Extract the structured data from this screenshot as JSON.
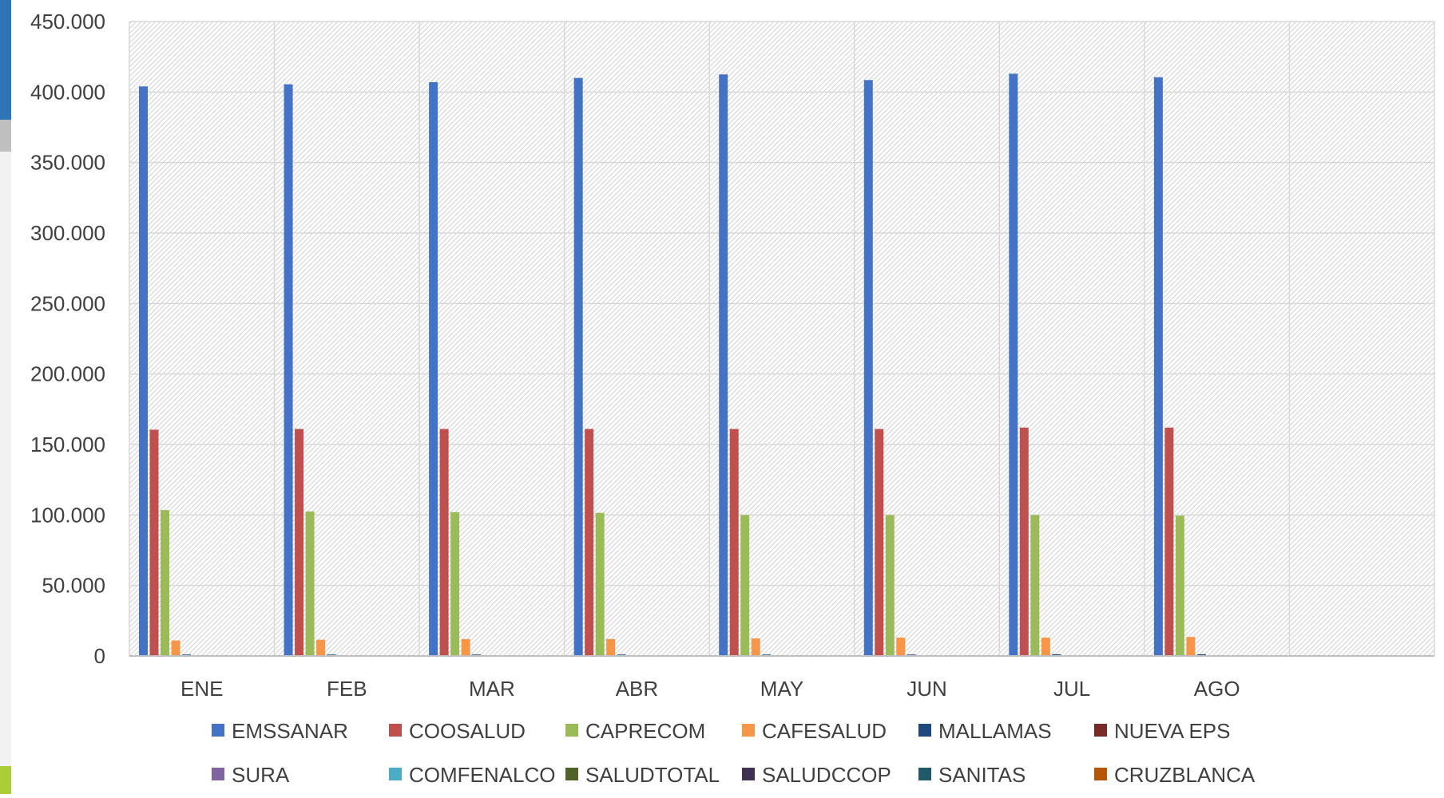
{
  "chart_data": {
    "type": "bar",
    "title": "",
    "xlabel": "",
    "ylabel": "",
    "categories": [
      "ENE",
      "FEB",
      "MAR",
      "ABR",
      "MAY",
      "JUN",
      "JUL",
      "AGO",
      ""
    ],
    "ylim": [
      0,
      450000
    ],
    "yticks": [
      0,
      50000,
      100000,
      150000,
      200000,
      250000,
      300000,
      350000,
      400000,
      450000
    ],
    "ytick_labels": [
      "0",
      "50.000",
      "100.000",
      "150.000",
      "200.000",
      "250.000",
      "300.000",
      "350.000",
      "400.000",
      "450.000"
    ],
    "grid": true,
    "legend_position": "bottom",
    "series": [
      {
        "name": "EMSSANAR",
        "color": "#4472C4",
        "values": [
          404000,
          405500,
          407000,
          410000,
          412500,
          408500,
          413000,
          410500,
          null
        ]
      },
      {
        "name": "COOSALUD",
        "color": "#C0504D",
        "values": [
          160500,
          161000,
          161000,
          161000,
          161000,
          161000,
          162000,
          162000,
          null
        ]
      },
      {
        "name": "CAPRECOM",
        "color": "#9BBB59",
        "values": [
          103500,
          102500,
          102000,
          101500,
          100000,
          100000,
          100000,
          99500,
          null
        ]
      },
      {
        "name": "CAFESALUD",
        "color": "#F79646",
        "values": [
          11000,
          11500,
          12000,
          12000,
          12500,
          13000,
          13000,
          13500,
          null
        ]
      },
      {
        "name": "MALLAMAS",
        "color": "#1F497D",
        "values": [
          1000,
          1000,
          1000,
          1000,
          1000,
          1000,
          1200,
          1200,
          null
        ]
      },
      {
        "name": "NUEVA EPS",
        "color": "#772C2A",
        "values": [
          200,
          200,
          200,
          200,
          200,
          200,
          200,
          200,
          null
        ]
      },
      {
        "name": "SURA",
        "color": "#8064A2",
        "values": [
          100,
          100,
          100,
          100,
          100,
          100,
          100,
          100,
          null
        ]
      },
      {
        "name": "COMFENALCO",
        "color": "#4BACC6",
        "values": [
          100,
          100,
          100,
          100,
          100,
          100,
          100,
          100,
          null
        ]
      },
      {
        "name": "SALUDTOTAL",
        "color": "#4F6228",
        "values": [
          100,
          100,
          100,
          100,
          100,
          100,
          100,
          100,
          null
        ]
      },
      {
        "name": "SALUDCCOP",
        "color": "#403152",
        "values": [
          100,
          100,
          100,
          100,
          100,
          100,
          100,
          100,
          null
        ]
      },
      {
        "name": "SANITAS",
        "color": "#215968",
        "values": [
          100,
          100,
          100,
          100,
          100,
          100,
          100,
          100,
          null
        ]
      },
      {
        "name": "CRUZBLANCA",
        "color": "#B65708",
        "values": [
          100,
          100,
          100,
          100,
          100,
          100,
          100,
          100,
          null
        ]
      }
    ]
  }
}
